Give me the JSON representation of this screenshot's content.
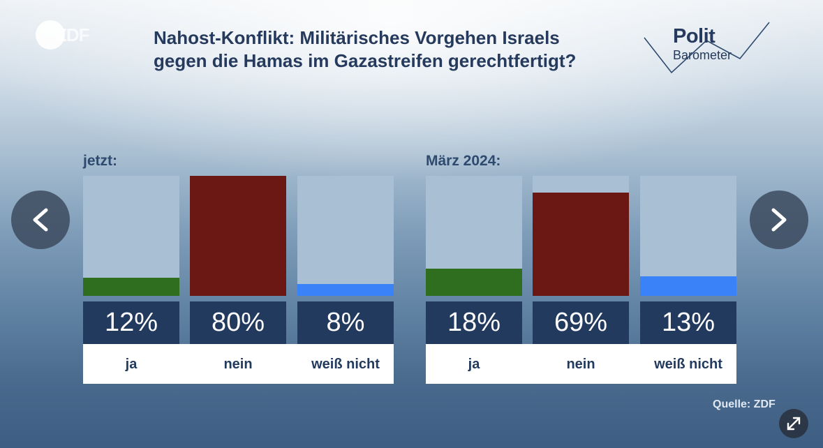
{
  "header": {
    "logo_text": "ZDF",
    "title_line1": "Nahost-Konflikt: Militärisches Vorgehen Israels",
    "title_line2": "gegen die Hamas im Gazastreifen gerechtfertigt?",
    "brand_line1": "Polit",
    "brand_line2": "Barometer"
  },
  "chart_data": [
    {
      "type": "bar",
      "title": "jetzt:",
      "categories": [
        "ja",
        "nein",
        "weiß nicht"
      ],
      "values": [
        12,
        80,
        8
      ],
      "value_labels": [
        "12%",
        "80%",
        "8%"
      ],
      "ylim": [
        0,
        80
      ],
      "colors": [
        "#2f6e1e",
        "#6b1814",
        "#3a82f7"
      ]
    },
    {
      "type": "bar",
      "title": "März 2024:",
      "categories": [
        "ja",
        "nein",
        "weiß nicht"
      ],
      "values": [
        18,
        69,
        13
      ],
      "value_labels": [
        "18%",
        "69%",
        "13%"
      ],
      "ylim": [
        0,
        80
      ],
      "colors": [
        "#2f6e1e",
        "#6b1814",
        "#3a82f7"
      ]
    }
  ],
  "footer": {
    "source": "Quelle: ZDF"
  },
  "icons": {
    "prev": "chevron-left-icon",
    "next": "chevron-right-icon",
    "expand": "expand-icon"
  }
}
